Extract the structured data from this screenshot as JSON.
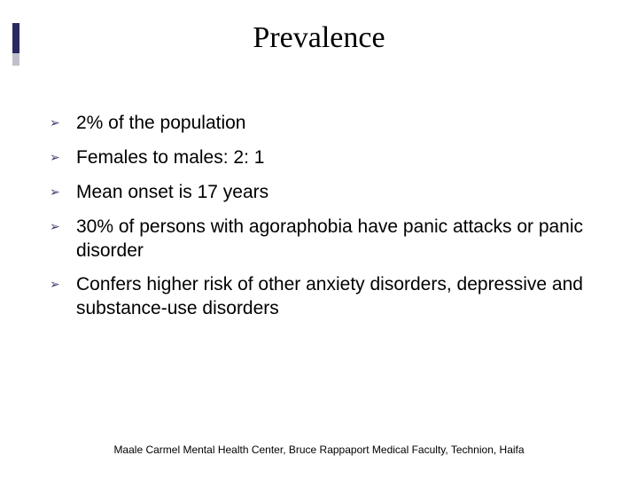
{
  "slide": {
    "title": "Prevalence",
    "bullets": [
      {
        "text": "2% of the population"
      },
      {
        "text": "Females to males: 2: 1"
      },
      {
        "text": "Mean onset is 17 years"
      },
      {
        "text": "30% of persons with agoraphobia have panic attacks or panic disorder"
      },
      {
        "text": "Confers higher risk of other anxiety disorders, depressive and substance-use disorders"
      }
    ],
    "footer": "Maale Carmel Mental Health Center, Bruce Rappaport Medical Faculty, Technion, Haifa"
  },
  "style": {
    "background_color": "#ffffff",
    "title_font_family": "Times New Roman",
    "title_fontsize_pt": 26,
    "title_color": "#000000",
    "body_font_family": "Verdana",
    "body_fontsize_pt": 16,
    "body_color": "#000000",
    "bullet_marker": "➢",
    "bullet_marker_color": "#3a3a70",
    "accent_bar_color_primary": "#2a2a60",
    "accent_bar_color_secondary": "#c0c0cc",
    "footer_font_family": "Arial",
    "footer_fontsize_pt": 9,
    "footer_color": "#000000"
  }
}
